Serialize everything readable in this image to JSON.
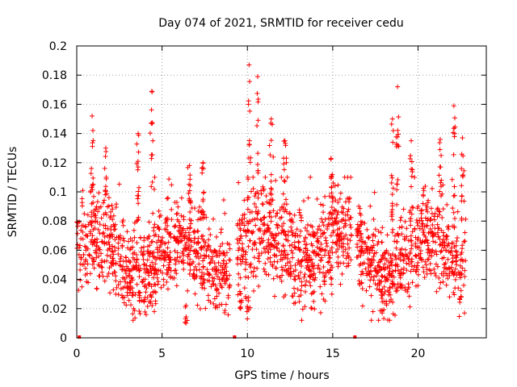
{
  "chart_data": {
    "type": "scatter",
    "title": "Day 074 of 2021, SRMTID for receiver cedu",
    "xlabel": "GPS time / hours",
    "ylabel": "SRMTID / TECUs",
    "xlim": [
      0,
      24
    ],
    "ylim": [
      0,
      0.2
    ],
    "xticks": [
      0,
      5,
      10,
      15,
      20
    ],
    "xtick_labels": [
      "0",
      "5",
      "10",
      "15",
      "20"
    ],
    "yticks": [
      0,
      0.02,
      0.04,
      0.06,
      0.08,
      0.1,
      0.12,
      0.14,
      0.16,
      0.18,
      0.2
    ],
    "ytick_labels": [
      "0",
      "0.02",
      "0.04",
      "0.06",
      "0.08",
      "0.1",
      "0.12",
      "0.14",
      "0.16",
      "0.18",
      "0.2"
    ],
    "grid": true,
    "marker": "+",
    "marker_color": "#ff0000",
    "zero_markers_x": [
      0.15,
      9.25,
      16.3
    ],
    "series": [
      {
        "name": "SRMTID",
        "segments": [
          {
            "x_start": 0.0,
            "x_end": 9.0,
            "base": 0.055,
            "spread": 0.03
          },
          {
            "x_start": 9.4,
            "x_end": 16.1,
            "base": 0.06,
            "spread": 0.035
          },
          {
            "x_start": 16.4,
            "x_end": 22.8,
            "base": 0.055,
            "spread": 0.03
          }
        ],
        "peaks": [
          {
            "x": 0.9,
            "y": 0.152
          },
          {
            "x": 1.7,
            "y": 0.13
          },
          {
            "x": 3.6,
            "y": 0.14
          },
          {
            "x": 4.4,
            "y": 0.169
          },
          {
            "x": 6.6,
            "y": 0.118
          },
          {
            "x": 7.4,
            "y": 0.12
          },
          {
            "x": 10.1,
            "y": 0.187
          },
          {
            "x": 10.6,
            "y": 0.179
          },
          {
            "x": 11.4,
            "y": 0.15
          },
          {
            "x": 12.2,
            "y": 0.135
          },
          {
            "x": 14.9,
            "y": 0.123
          },
          {
            "x": 18.5,
            "y": 0.15
          },
          {
            "x": 18.8,
            "y": 0.172
          },
          {
            "x": 19.6,
            "y": 0.135
          },
          {
            "x": 21.3,
            "y": 0.136
          },
          {
            "x": 22.1,
            "y": 0.159
          },
          {
            "x": 22.6,
            "y": 0.137
          }
        ],
        "lows": [
          {
            "x": 6.4,
            "y": 0.01
          },
          {
            "x": 10.0,
            "y": 0.013
          },
          {
            "x": 17.9,
            "y": 0.017
          },
          {
            "x": 9.6,
            "y": 0.02
          }
        ]
      }
    ]
  }
}
